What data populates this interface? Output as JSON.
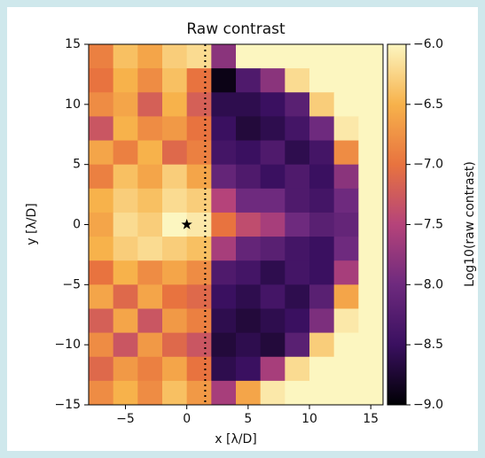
{
  "chart_data": {
    "type": "heatmap",
    "title": "Raw contrast",
    "xlabel": "x [λ/D]",
    "ylabel": "y [λ/D]",
    "x": [
      -7,
      -5,
      -3,
      -1,
      1,
      3,
      5,
      7,
      9,
      11,
      13,
      15
    ],
    "y": [
      14,
      12,
      10,
      8,
      6,
      4,
      2,
      0,
      -2,
      -4,
      -6,
      -8,
      -10,
      -12,
      -14
    ],
    "z": [
      [
        -6.9,
        -6.4,
        -6.6,
        -6.3,
        -6.2,
        -7.8,
        -6.0,
        -6.0,
        -6.0,
        -6.0,
        -6.0,
        -6.0
      ],
      [
        -7.0,
        -6.5,
        -6.8,
        -6.4,
        -7.0,
        -8.9,
        -8.3,
        -7.8,
        -6.2,
        -6.0,
        -6.0,
        -6.0
      ],
      [
        -6.8,
        -6.6,
        -7.2,
        -6.5,
        -7.2,
        -8.6,
        -8.6,
        -8.5,
        -8.2,
        -6.3,
        -6.0,
        -6.0
      ],
      [
        -7.3,
        -6.5,
        -6.8,
        -6.7,
        -7.0,
        -8.5,
        -8.7,
        -8.6,
        -8.4,
        -8.0,
        -6.1,
        -6.0
      ],
      [
        -6.6,
        -6.9,
        -6.5,
        -7.1,
        -6.9,
        -8.4,
        -8.5,
        -8.3,
        -8.6,
        -8.4,
        -6.8,
        -6.0
      ],
      [
        -6.9,
        -6.4,
        -6.6,
        -6.3,
        -6.6,
        -8.1,
        -8.3,
        -8.5,
        -8.3,
        -8.5,
        -7.8,
        -6.0
      ],
      [
        -6.5,
        -6.3,
        -6.4,
        -6.2,
        -6.3,
        -7.5,
        -8.0,
        -8.0,
        -8.3,
        -8.4,
        -8.0,
        -6.0
      ],
      [
        -6.6,
        -6.2,
        -6.3,
        -6.0,
        -6.1,
        -7.0,
        -7.4,
        -7.6,
        -8.0,
        -8.2,
        -8.1,
        -6.0
      ],
      [
        -6.5,
        -6.3,
        -6.2,
        -6.3,
        -6.4,
        -7.6,
        -8.1,
        -8.2,
        -8.4,
        -8.5,
        -8.0,
        -6.0
      ],
      [
        -7.0,
        -6.5,
        -6.8,
        -6.6,
        -6.8,
        -8.3,
        -8.4,
        -8.6,
        -8.4,
        -8.5,
        -7.6,
        -6.0
      ],
      [
        -6.6,
        -7.1,
        -6.6,
        -7.0,
        -7.1,
        -8.5,
        -8.6,
        -8.4,
        -8.6,
        -8.2,
        -6.6,
        -6.0
      ],
      [
        -7.2,
        -6.6,
        -7.3,
        -6.7,
        -6.9,
        -8.6,
        -8.7,
        -8.6,
        -8.5,
        -7.9,
        -6.1,
        -6.0
      ],
      [
        -6.8,
        -7.3,
        -6.7,
        -7.1,
        -7.3,
        -8.7,
        -8.6,
        -8.7,
        -8.2,
        -6.3,
        -6.0,
        -6.0
      ],
      [
        -7.1,
        -6.7,
        -6.9,
        -6.6,
        -7.0,
        -8.6,
        -8.5,
        -7.6,
        -6.2,
        -6.0,
        -6.0,
        -6.0
      ],
      [
        -6.8,
        -6.5,
        -6.8,
        -6.4,
        -6.7,
        -7.6,
        -6.6,
        -6.1,
        -6.0,
        -6.0,
        -6.0,
        -6.0
      ]
    ],
    "xlim": [
      -8,
      16
    ],
    "ylim": [
      -15,
      15
    ],
    "xticks": [
      {
        "value": -5,
        "label": "−5"
      },
      0,
      5,
      10,
      15
    ],
    "yticks": [
      {
        "value": -15,
        "label": "−15"
      },
      {
        "value": -10,
        "label": "−10"
      },
      {
        "value": -5,
        "label": "−5"
      },
      0,
      5,
      10,
      15
    ],
    "markers": [
      {
        "x": 0,
        "y": 0
      }
    ],
    "vlines": [
      1.5
    ],
    "colorbar": {
      "label": "Log10(raw contrast)",
      "clim": [
        -9,
        -6
      ],
      "colors": [
        "#000004",
        "#3a1060",
        "#6e2a7e",
        "#b5437a",
        "#e8733f",
        "#f7b24b",
        "#fcf6c0"
      ],
      "ticks": [
        {
          "value": -6,
          "label": "−6.0"
        },
        {
          "value": -6.5,
          "label": "−6.5"
        },
        {
          "value": -7,
          "label": "−7.0"
        },
        {
          "value": -7.5,
          "label": "−7.5"
        },
        {
          "value": -8,
          "label": "−8.0"
        },
        {
          "value": -8.5,
          "label": "−8.5"
        },
        {
          "value": -9,
          "label": "−9.0"
        }
      ]
    }
  }
}
